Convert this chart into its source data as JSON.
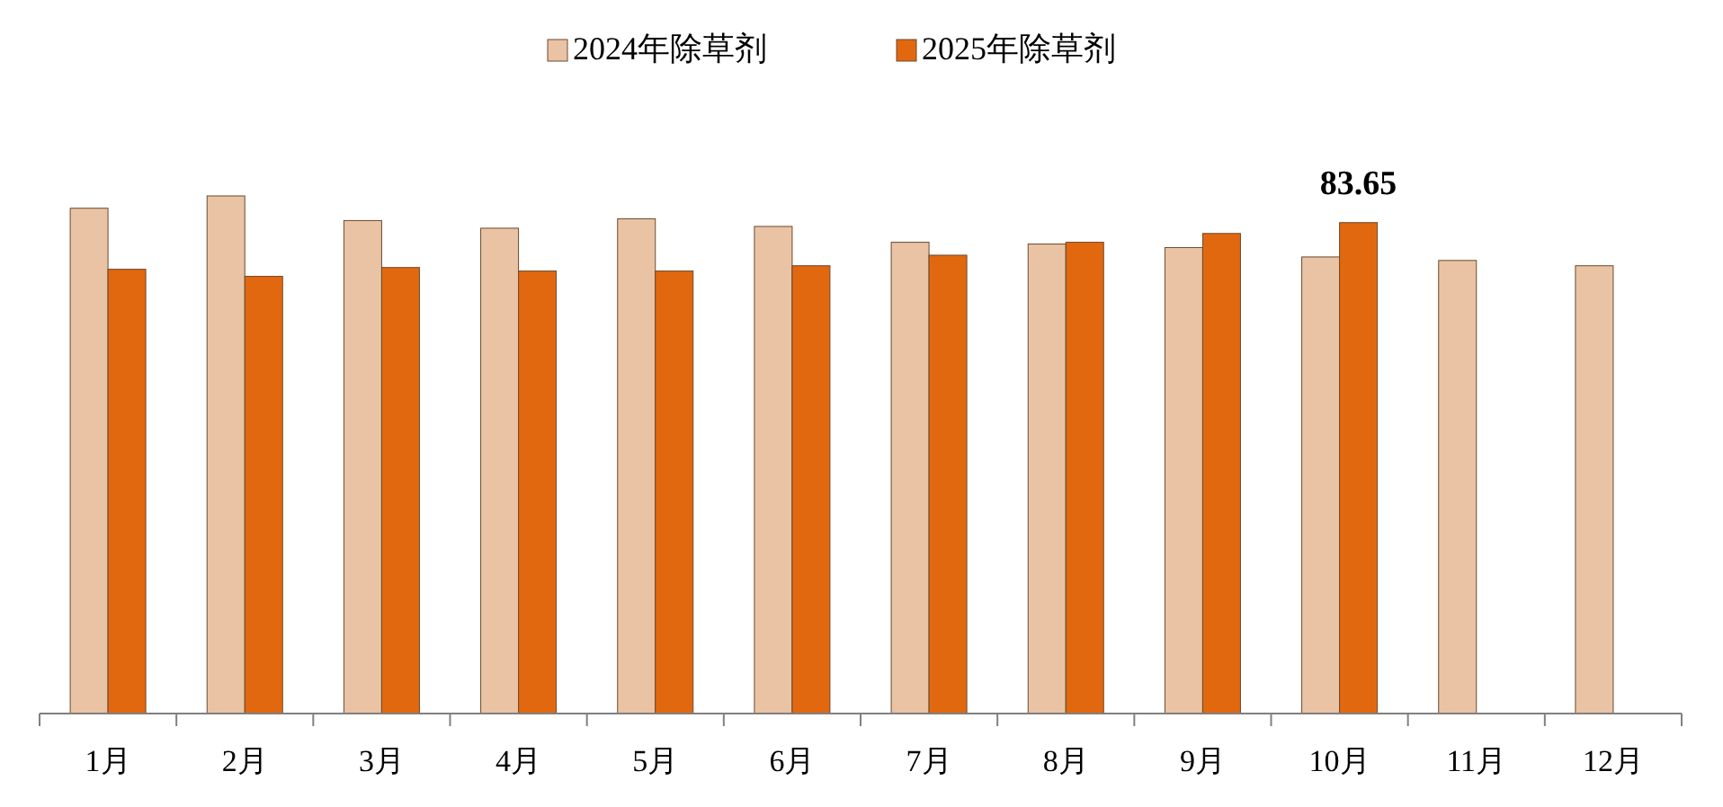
{
  "chart_data": {
    "type": "bar",
    "categories": [
      "1月",
      "2月",
      "3月",
      "4月",
      "5月",
      "6月",
      "7月",
      "8月",
      "9月",
      "10月",
      "11月",
      "12月"
    ],
    "series": [
      {
        "name": "2024年除草剂",
        "color": "#e9c3a3",
        "values": [
          86.1,
          88.2,
          84.0,
          82.7,
          84.3,
          83.0,
          80.3,
          80.0,
          79.4,
          77.8,
          77.2,
          76.3
        ]
      },
      {
        "name": "2025年除草剂",
        "color": "#e2680f",
        "values": [
          75.7,
          74.5,
          76.0,
          75.4,
          75.4,
          76.3,
          78.1,
          80.3,
          81.8,
          83.65,
          null,
          null
        ],
        "value_labels": [
          null,
          null,
          null,
          null,
          null,
          null,
          null,
          null,
          null,
          "83.65",
          null,
          null
        ]
      }
    ],
    "tick_labels": "x",
    "legend": "top"
  }
}
